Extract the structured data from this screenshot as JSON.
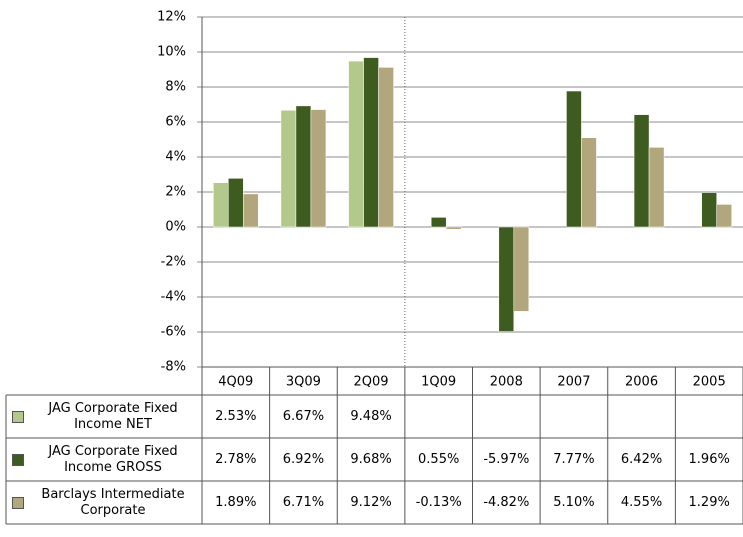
{
  "chart_data": {
    "type": "bar",
    "categories": [
      "4Q09",
      "3Q09",
      "2Q09",
      "1Q09",
      "2008",
      "2007",
      "2006",
      "2005"
    ],
    "series": [
      {
        "name": "JAG Corporate Fixed Income NET",
        "color": "#b3c98c",
        "values": [
          2.53,
          6.67,
          9.48,
          null,
          null,
          null,
          null,
          null
        ],
        "value_labels": [
          "2.53%",
          "6.67%",
          "9.48%",
          null,
          null,
          null,
          null,
          null
        ]
      },
      {
        "name": "JAG Corporate Fixed Income GROSS",
        "color": "#3f5c20",
        "values": [
          2.78,
          6.92,
          9.68,
          0.55,
          -5.97,
          7.77,
          6.42,
          1.96
        ],
        "value_labels": [
          "2.78%",
          "6.92%",
          "9.68%",
          "0.55%",
          "-5.97%",
          "7.77%",
          "6.42%",
          "1.96%"
        ]
      },
      {
        "name": "Barclays Intermediate Corporate",
        "color": "#b2a67c",
        "values": [
          1.89,
          6.71,
          9.12,
          -0.13,
          -4.82,
          5.1,
          4.55,
          1.29
        ],
        "value_labels": [
          "1.89%",
          "6.71%",
          "9.12%",
          "-0.13%",
          "-4.82%",
          "5.10%",
          "4.55%",
          "1.29%"
        ]
      }
    ],
    "ylim": [
      -8,
      12
    ],
    "yticks": [
      {
        "value": -8,
        "label": "-8%"
      },
      {
        "value": -6,
        "label": "-6%"
      },
      {
        "value": -4,
        "label": "-4%"
      },
      {
        "value": -2,
        "label": "-2%"
      },
      {
        "value": 0,
        "label": "0%"
      },
      {
        "value": 2,
        "label": "2%"
      },
      {
        "value": 4,
        "label": "4%"
      },
      {
        "value": 6,
        "label": "6%"
      },
      {
        "value": 8,
        "label": "8%"
      },
      {
        "value": 10,
        "label": "10%"
      },
      {
        "value": 12,
        "label": "12%"
      }
    ],
    "grid": true
  }
}
